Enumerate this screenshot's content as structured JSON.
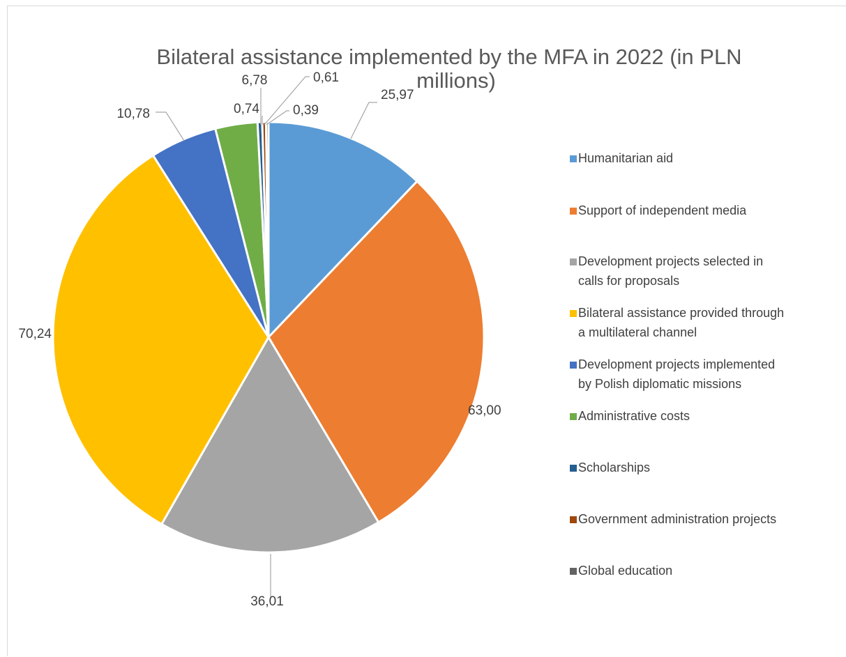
{
  "chart_data": {
    "type": "pie",
    "title_lines": [
      "Bilateral assistance implemented by the MFA in 2022 (in PLN",
      "millions)"
    ],
    "legend_position": "right",
    "slices": [
      {
        "name": "Humanitarian aid",
        "legend_lines": [
          "Humanitarian aid"
        ],
        "value": 25.97,
        "label": "25,97",
        "color": "#5B9BD5"
      },
      {
        "name": "Support of independent media",
        "legend_lines": [
          "Support of independent media"
        ],
        "value": 63.0,
        "label": "63,00",
        "color": "#ED7D31"
      },
      {
        "name": "Development projects selected in calls for proposals",
        "legend_lines": [
          "Development projects selected in",
          "calls for proposals"
        ],
        "value": 36.01,
        "label": "36,01",
        "color": "#A5A5A5"
      },
      {
        "name": "Bilateral assistance provided through a multilateral channel",
        "legend_lines": [
          "Bilateral assistance provided through",
          "a multilateral channel"
        ],
        "value": 70.24,
        "label": "70,24",
        "color": "#FFC000"
      },
      {
        "name": "Development projects implemented by Polish diplomatic missions",
        "legend_lines": [
          "Development projects implemented",
          "by Polish diplomatic missions"
        ],
        "value": 10.78,
        "label": "10,78",
        "color": "#4472C4"
      },
      {
        "name": "Administrative costs",
        "legend_lines": [
          "Administrative costs"
        ],
        "value": 6.78,
        "label": "6,78",
        "color": "#70AD47"
      },
      {
        "name": "Scholarships",
        "legend_lines": [
          "Scholarships"
        ],
        "value": 0.74,
        "label": "0,74",
        "color": "#255E91"
      },
      {
        "name": "Government administration projects",
        "legend_lines": [
          "Government administration projects"
        ],
        "value": 0.61,
        "label": "0,61",
        "color": "#9E480E"
      },
      {
        "name": "Global education",
        "legend_lines": [
          "Global education"
        ],
        "value": 0.39,
        "label": "0,39",
        "color": "#636363"
      }
    ]
  }
}
